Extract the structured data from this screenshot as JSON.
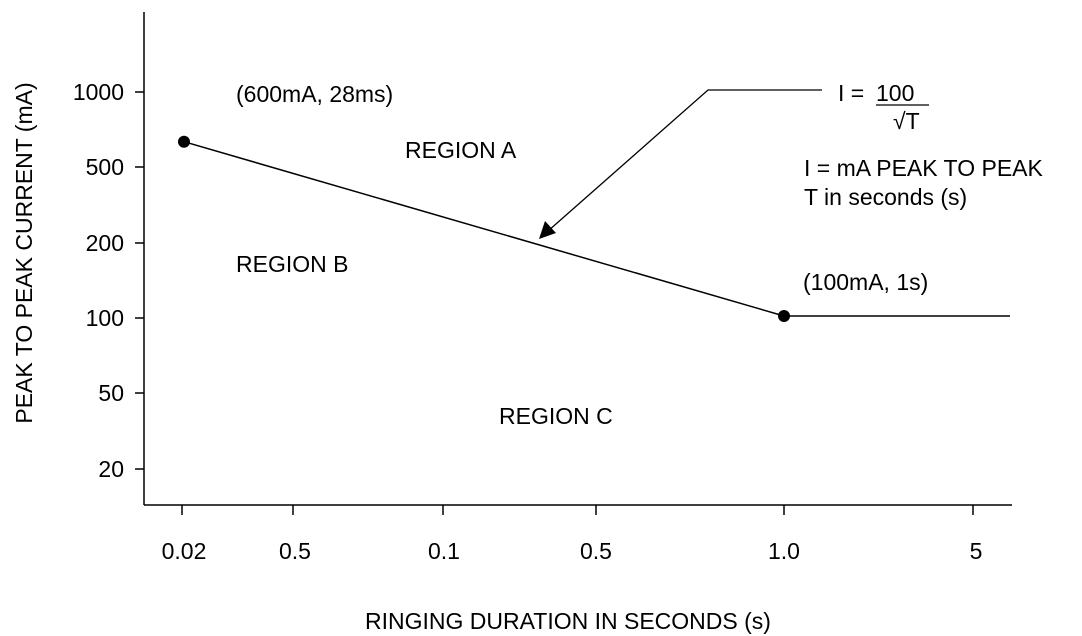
{
  "chart_data": {
    "type": "line",
    "xlabel": "RINGING DURATION IN SECONDS (s)",
    "ylabel": "PEAK TO PEAK CURRENT (mA)",
    "x_tick_labels": [
      "0.02",
      "0.5",
      "0.1",
      "0.5",
      "1.0",
      "5"
    ],
    "y_tick_labels": [
      "1000",
      "500",
      "200",
      "100",
      "50",
      "20"
    ],
    "series": [
      {
        "x": [
          0.028,
          1.0
        ],
        "y": [
          600,
          100
        ]
      },
      {
        "x": [
          1.0,
          7.0
        ],
        "y": [
          100,
          100
        ]
      }
    ],
    "points": [
      {
        "x": 0.028,
        "y": 600,
        "label": "(600mA, 28ms)"
      },
      {
        "x": 1.0,
        "y": 100,
        "label": "(100mA, 1s)"
      }
    ],
    "regions": [
      "REGION A",
      "REGION B",
      "REGION C"
    ],
    "formula": {
      "lhs": "I =",
      "numerator": "100",
      "denominator": "√T",
      "note_1": "I = mA PEAK TO PEAK",
      "note_2": "T in seconds (s)"
    }
  }
}
